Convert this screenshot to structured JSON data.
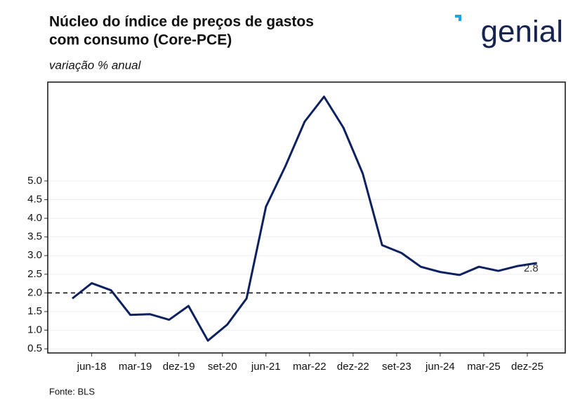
{
  "chart_data": {
    "type": "line",
    "title": [
      "Núcleo do índice de preços de gastos",
      "com consumo (Core-PCE)"
    ],
    "subtitle": "variação % anual",
    "source": "Fonte: BLS",
    "logo": "genial",
    "x": [
      2018.083,
      2018.417,
      2018.75,
      2019.083,
      2019.417,
      2019.75,
      2020.083,
      2020.417,
      2020.75,
      2021.083,
      2021.417,
      2021.75,
      2022.083,
      2022.417,
      2022.75,
      2023.083,
      2023.417,
      2023.75,
      2024.083,
      2024.417,
      2024.75,
      2025.083,
      2025.417,
      2025.75,
      2026.083
    ],
    "series": [
      {
        "color": "#0d2160",
        "values": [
          1.85,
          2.26,
          2.07,
          1.41,
          1.43,
          1.28,
          1.65,
          0.72,
          1.15,
          1.85,
          4.31,
          5.39,
          6.59,
          7.26,
          6.43,
          5.2,
          3.28,
          3.07,
          2.7,
          2.56,
          2.48,
          2.7,
          2.59,
          2.72,
          2.8
        ]
      }
    ],
    "xlim": [
      2017.66,
      2026.57
    ],
    "xticks": [
      {
        "value": 2018.417,
        "label": "jun-18"
      },
      {
        "value": 2019.167,
        "label": "mar-19"
      },
      {
        "value": 2019.917,
        "label": "dez-19"
      },
      {
        "value": 2020.667,
        "label": "set-20"
      },
      {
        "value": 2021.417,
        "label": "jun-21"
      },
      {
        "value": 2022.167,
        "label": "mar-22"
      },
      {
        "value": 2022.917,
        "label": "dez-22"
      },
      {
        "value": 2023.667,
        "label": "set-23"
      },
      {
        "value": 2024.417,
        "label": "jun-24"
      },
      {
        "value": 2025.167,
        "label": "mar-25"
      },
      {
        "value": 2025.917,
        "label": "dez-25"
      }
    ],
    "ylim": [
      0.39,
      7.65
    ],
    "yticks": [
      {
        "value": 0.5,
        "label": "0.5"
      },
      {
        "value": 1.0,
        "label": "1.0"
      },
      {
        "value": 1.5,
        "label": "1.5"
      },
      {
        "value": 2.0,
        "label": "2.0"
      },
      {
        "value": 2.5,
        "label": "2.5"
      },
      {
        "value": 3.0,
        "label": "3.0"
      },
      {
        "value": 3.5,
        "label": "3.5"
      },
      {
        "value": 4.0,
        "label": "4.0"
      },
      {
        "value": 4.5,
        "label": "4.5"
      },
      {
        "value": 5.0,
        "label": "5.0"
      }
    ],
    "reference_line": 2.0,
    "grid": true
  }
}
